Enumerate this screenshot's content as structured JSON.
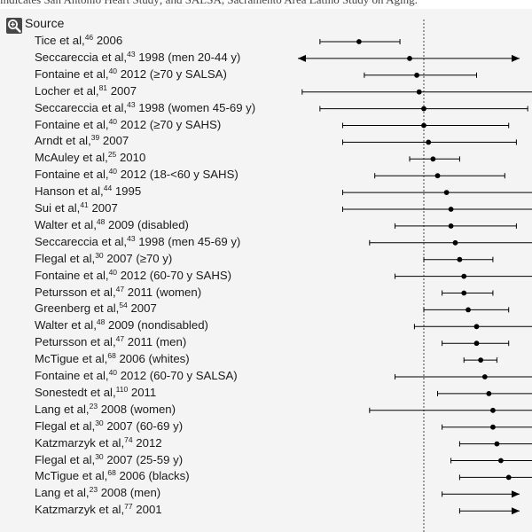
{
  "caption_fragment": "indicates San Antonio Heart Study; and SALSA, Sacramento Area Latino Study on Aging.",
  "header": {
    "title": "Source"
  },
  "icons": {
    "zoom": "magnifier-plus-icon"
  },
  "colors": {
    "text": "#1a1a1a",
    "marker": "#000000",
    "panel": "#f4f4f4",
    "reference_line": "#444444"
  },
  "chart_data": {
    "type": "forest",
    "x_scale": "log",
    "reference_value": 1.0,
    "grid": false,
    "rows": [
      {
        "author": "Tice et al,",
        "ref": "46",
        "detail": " 2006",
        "estimate": 0.87,
        "ci_low": 0.8,
        "ci_high": 0.95,
        "arrow_low": false,
        "arrow_high": false
      },
      {
        "author": "Seccareccia et al,",
        "ref": "43",
        "detail": " 1998 (men 20-44 y)",
        "estimate": 0.97,
        "ci_low": 0.3,
        "ci_high": 3.0,
        "arrow_low": true,
        "arrow_high": true
      },
      {
        "author": "Fontaine et al,",
        "ref": "40",
        "detail": " 2012 (≥70 y SALSA)",
        "estimate": 0.985,
        "ci_low": 0.88,
        "ci_high": 1.12,
        "arrow_low": false,
        "arrow_high": false
      },
      {
        "author": "Locher et al,",
        "ref": "81",
        "detail": " 2007",
        "estimate": 0.99,
        "ci_low": 0.77,
        "ci_high": 1.3,
        "arrow_low": false,
        "arrow_high": false
      },
      {
        "author": "Seccareccia et al,",
        "ref": "43",
        "detail": " 1998 (women 45-69 y)",
        "estimate": 1.0,
        "ci_low": 0.8,
        "ci_high": 1.25,
        "arrow_low": false,
        "arrow_high": false
      },
      {
        "author": "Fontaine et al,",
        "ref": "40",
        "detail": " 2012 (≥70 y SAHS)",
        "estimate": 1.0,
        "ci_low": 0.84,
        "ci_high": 1.2,
        "arrow_low": false,
        "arrow_high": false
      },
      {
        "author": "Arndt et al,",
        "ref": "39",
        "detail": " 2007",
        "estimate": 1.01,
        "ci_low": 0.84,
        "ci_high": 1.22,
        "arrow_low": false,
        "arrow_high": false
      },
      {
        "author": "McAuley et al,",
        "ref": "25",
        "detail": " 2010",
        "estimate": 1.02,
        "ci_low": 0.97,
        "ci_high": 1.08,
        "arrow_low": false,
        "arrow_high": false
      },
      {
        "author": "Fontaine et al,",
        "ref": "40",
        "detail": " 2012 (18-<60 y SAHS)",
        "estimate": 1.03,
        "ci_low": 0.9,
        "ci_high": 1.19,
        "arrow_low": false,
        "arrow_high": false
      },
      {
        "author": "Hanson et al,",
        "ref": "44",
        "detail": " 1995",
        "estimate": 1.05,
        "ci_low": 0.84,
        "ci_high": 1.31,
        "arrow_low": false,
        "arrow_high": false
      },
      {
        "author": "Sui et al,",
        "ref": "41",
        "detail": " 2007",
        "estimate": 1.06,
        "ci_low": 0.84,
        "ci_high": 1.34,
        "arrow_low": false,
        "arrow_high": false
      },
      {
        "author": "Walter et al,",
        "ref": "48",
        "detail": " 2009 (disabled)",
        "estimate": 1.06,
        "ci_low": 0.94,
        "ci_high": 1.22,
        "arrow_low": false,
        "arrow_high": false
      },
      {
        "author": "Seccareccia et al,",
        "ref": "43",
        "detail": " 1998 (men 45-69 y)",
        "estimate": 1.07,
        "ci_low": 0.89,
        "ci_high": 1.3,
        "arrow_low": false,
        "arrow_high": false
      },
      {
        "author": "Flegal et al,",
        "ref": "30",
        "detail": " 2007 (≥70 y)",
        "estimate": 1.08,
        "ci_low": 1.0,
        "ci_high": 1.16,
        "arrow_low": false,
        "arrow_high": false
      },
      {
        "author": "Fontaine et al,",
        "ref": "40",
        "detail": " 2012 (60-70 y SAHS)",
        "estimate": 1.09,
        "ci_low": 0.94,
        "ci_high": 1.28,
        "arrow_low": false,
        "arrow_high": false
      },
      {
        "author": "Petursson et al,",
        "ref": "47",
        "detail": " 2011 (women)",
        "estimate": 1.09,
        "ci_low": 1.04,
        "ci_high": 1.16,
        "arrow_low": false,
        "arrow_high": false
      },
      {
        "author": "Greenberg et al,",
        "ref": "54",
        "detail": " 2007",
        "estimate": 1.1,
        "ci_low": 1.0,
        "ci_high": 1.2,
        "arrow_low": false,
        "arrow_high": false
      },
      {
        "author": "Walter et al,",
        "ref": "48",
        "detail": " 2009 (nondisabled)",
        "estimate": 1.12,
        "ci_low": 0.98,
        "ci_high": 1.28,
        "arrow_low": false,
        "arrow_high": false
      },
      {
        "author": "Petursson et al,",
        "ref": "47",
        "detail": " 2011 (men)",
        "estimate": 1.12,
        "ci_low": 1.04,
        "ci_high": 1.2,
        "arrow_low": false,
        "arrow_high": false
      },
      {
        "author": "McTigue et al,",
        "ref": "68",
        "detail": " 2006 (whites)",
        "estimate": 1.13,
        "ci_low": 1.09,
        "ci_high": 1.17,
        "arrow_low": false,
        "arrow_high": false
      },
      {
        "author": "Fontaine et al,",
        "ref": "40",
        "detail": " 2012 (60-70 y SALSA)",
        "estimate": 1.14,
        "ci_low": 0.94,
        "ci_high": 1.4,
        "arrow_low": false,
        "arrow_high": false
      },
      {
        "author": "Sonestedt et al,",
        "ref": "110",
        "detail": " 2011",
        "estimate": 1.15,
        "ci_low": 1.03,
        "ci_high": 1.28,
        "arrow_low": false,
        "arrow_high": false
      },
      {
        "author": "Lang et al,",
        "ref": "23",
        "detail": " 2008 (women)",
        "estimate": 1.16,
        "ci_low": 0.89,
        "ci_high": 1.52,
        "arrow_low": false,
        "arrow_high": false
      },
      {
        "author": "Flegal et al,",
        "ref": "30",
        "detail": " 2007 (60-69 y)",
        "estimate": 1.16,
        "ci_low": 1.04,
        "ci_high": 1.3,
        "arrow_low": false,
        "arrow_high": false
      },
      {
        "author": "Katzmarzyk et al,",
        "ref": "74",
        "detail": " 2012",
        "estimate": 1.17,
        "ci_low": 1.08,
        "ci_high": 1.27,
        "arrow_low": false,
        "arrow_high": false
      },
      {
        "author": "Flegal et al,",
        "ref": "30",
        "detail": " 2007 (25-59 y)",
        "estimate": 1.18,
        "ci_low": 1.06,
        "ci_high": 1.31,
        "arrow_low": false,
        "arrow_high": false
      },
      {
        "author": "McTigue et al,",
        "ref": "68",
        "detail": " 2006 (blacks)",
        "estimate": 1.2,
        "ci_low": 1.08,
        "ci_high": 1.33,
        "arrow_low": false,
        "arrow_high": false
      },
      {
        "author": "Lang et al,",
        "ref": "23",
        "detail": " 2008 (men)",
        "estimate": 1.28,
        "ci_low": 1.04,
        "ci_high": 1.6,
        "arrow_low": false,
        "arrow_high": true
      },
      {
        "author": "Katzmarzyk et al,",
        "ref": "77",
        "detail": " 2001",
        "estimate": 1.3,
        "ci_low": 1.08,
        "ci_high": 1.6,
        "arrow_low": false,
        "arrow_high": true
      }
    ]
  }
}
